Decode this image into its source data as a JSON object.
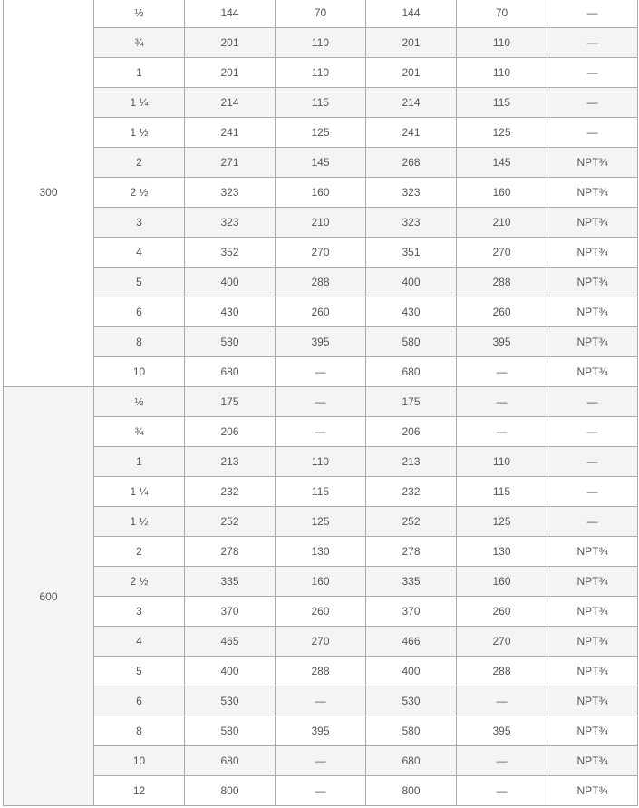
{
  "groups": [
    {
      "label": "300",
      "rows": [
        [
          "½",
          "144",
          "70",
          "144",
          "70",
          "—"
        ],
        [
          "¾",
          "201",
          "110",
          "201",
          "110",
          "—"
        ],
        [
          "1",
          "201",
          "110",
          "201",
          "110",
          "—"
        ],
        [
          "1 ¼",
          "214",
          "115",
          "214",
          "115",
          "—"
        ],
        [
          "1 ½",
          "241",
          "125",
          "241",
          "125",
          "—"
        ],
        [
          "2",
          "271",
          "145",
          "268",
          "145",
          "NPT¾"
        ],
        [
          "2 ½",
          "323",
          "160",
          "323",
          "160",
          "NPT¾"
        ],
        [
          "3",
          "323",
          "210",
          "323",
          "210",
          "NPT¾"
        ],
        [
          "4",
          "352",
          "270",
          "351",
          "270",
          "NPT¾"
        ],
        [
          "5",
          "400",
          "288",
          "400",
          "288",
          "NPT¾"
        ],
        [
          "6",
          "430",
          "260",
          "430",
          "260",
          "NPT¾"
        ],
        [
          "8",
          "580",
          "395",
          "580",
          "395",
          "NPT¾"
        ],
        [
          "10",
          "680",
          "—",
          "680",
          "—",
          "NPT¾"
        ]
      ]
    },
    {
      "label": "600",
      "rows": [
        [
          "½",
          "175",
          "—",
          "175",
          "—",
          "—"
        ],
        [
          "¾",
          "206",
          "—",
          "206",
          "—",
          "—"
        ],
        [
          "1",
          "213",
          "110",
          "213",
          "110",
          "—"
        ],
        [
          "1 ¼",
          "232",
          "115",
          "232",
          "115",
          "—"
        ],
        [
          "1 ½",
          "252",
          "125",
          "252",
          "125",
          "—"
        ],
        [
          "2",
          "278",
          "130",
          "278",
          "130",
          "NPT¾"
        ],
        [
          "2 ½",
          "335",
          "160",
          "335",
          "160",
          "NPT¾"
        ],
        [
          "3",
          "370",
          "260",
          "370",
          "260",
          "NPT¾"
        ],
        [
          "4",
          "465",
          "270",
          "466",
          "270",
          "NPT¾"
        ],
        [
          "5",
          "400",
          "288",
          "400",
          "288",
          "NPT¾"
        ],
        [
          "6",
          "530",
          "—",
          "530",
          "—",
          "NPT¾"
        ],
        [
          "8",
          "580",
          "395",
          "580",
          "395",
          "NPT¾"
        ],
        [
          "10",
          "680",
          "—",
          "680",
          "—",
          "NPT¾"
        ],
        [
          "12",
          "800",
          "—",
          "800",
          "—",
          "NPT¾"
        ]
      ]
    }
  ]
}
